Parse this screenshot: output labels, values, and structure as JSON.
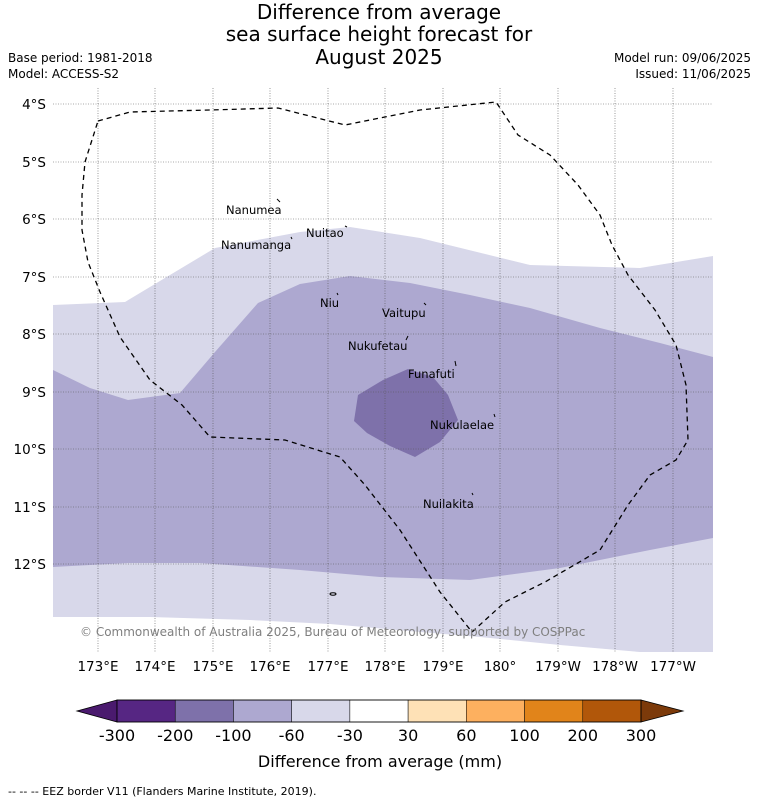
{
  "title": {
    "line1": "Difference from average",
    "line2": "sea surface height forecast for",
    "line3": "August 2025"
  },
  "meta": {
    "base_period": "Base period: 1981-2018",
    "model": "Model: ACCESS-S2",
    "model_run": "Model run: 09/06/2025",
    "issued": "Issued: 11/06/2025"
  },
  "copyright": "© Commonwealth of Australia 2025, Bureau of Meteorology, supported by COSPPac",
  "footer": "-- -- -- EEZ border V11 (Flanders Marine Institute, 2019).",
  "lat_ticks": [
    "4°S",
    "5°S",
    "6°S",
    "7°S",
    "8°S",
    "9°S",
    "10°S",
    "11°S",
    "12°S"
  ],
  "lon_ticks": [
    "173°E",
    "174°E",
    "175°E",
    "176°E",
    "177°E",
    "178°E",
    "179°E",
    "180°",
    "179°W",
    "178°W",
    "177°W"
  ],
  "islands": [
    "Nanumea",
    "Nuitao",
    "Nanumanga",
    "Niu",
    "Vaitupu",
    "Nukufetau",
    "Funafuti",
    "Nukulaelae",
    "Nuilakita"
  ],
  "colorbar": {
    "title": "Difference from average (mm)",
    "tick_labels": [
      "-300",
      "-200",
      "-100",
      "-60",
      "-30",
      "30",
      "60",
      "100",
      "200",
      "300"
    ],
    "colors": [
      "#4a1a6e",
      "#562683",
      "#7e71aa",
      "#ada8d0",
      "#d8d8ea",
      "#ffffff",
      "#fee1b6",
      "#fdb05f",
      "#e1841a",
      "#b1570a",
      "#7c3a0a"
    ]
  },
  "fill_colors": {
    "-60..-30": "#d8d8ea",
    "-100..-60": "#ada8d0",
    "-200..-100": "#7e71aa"
  }
}
